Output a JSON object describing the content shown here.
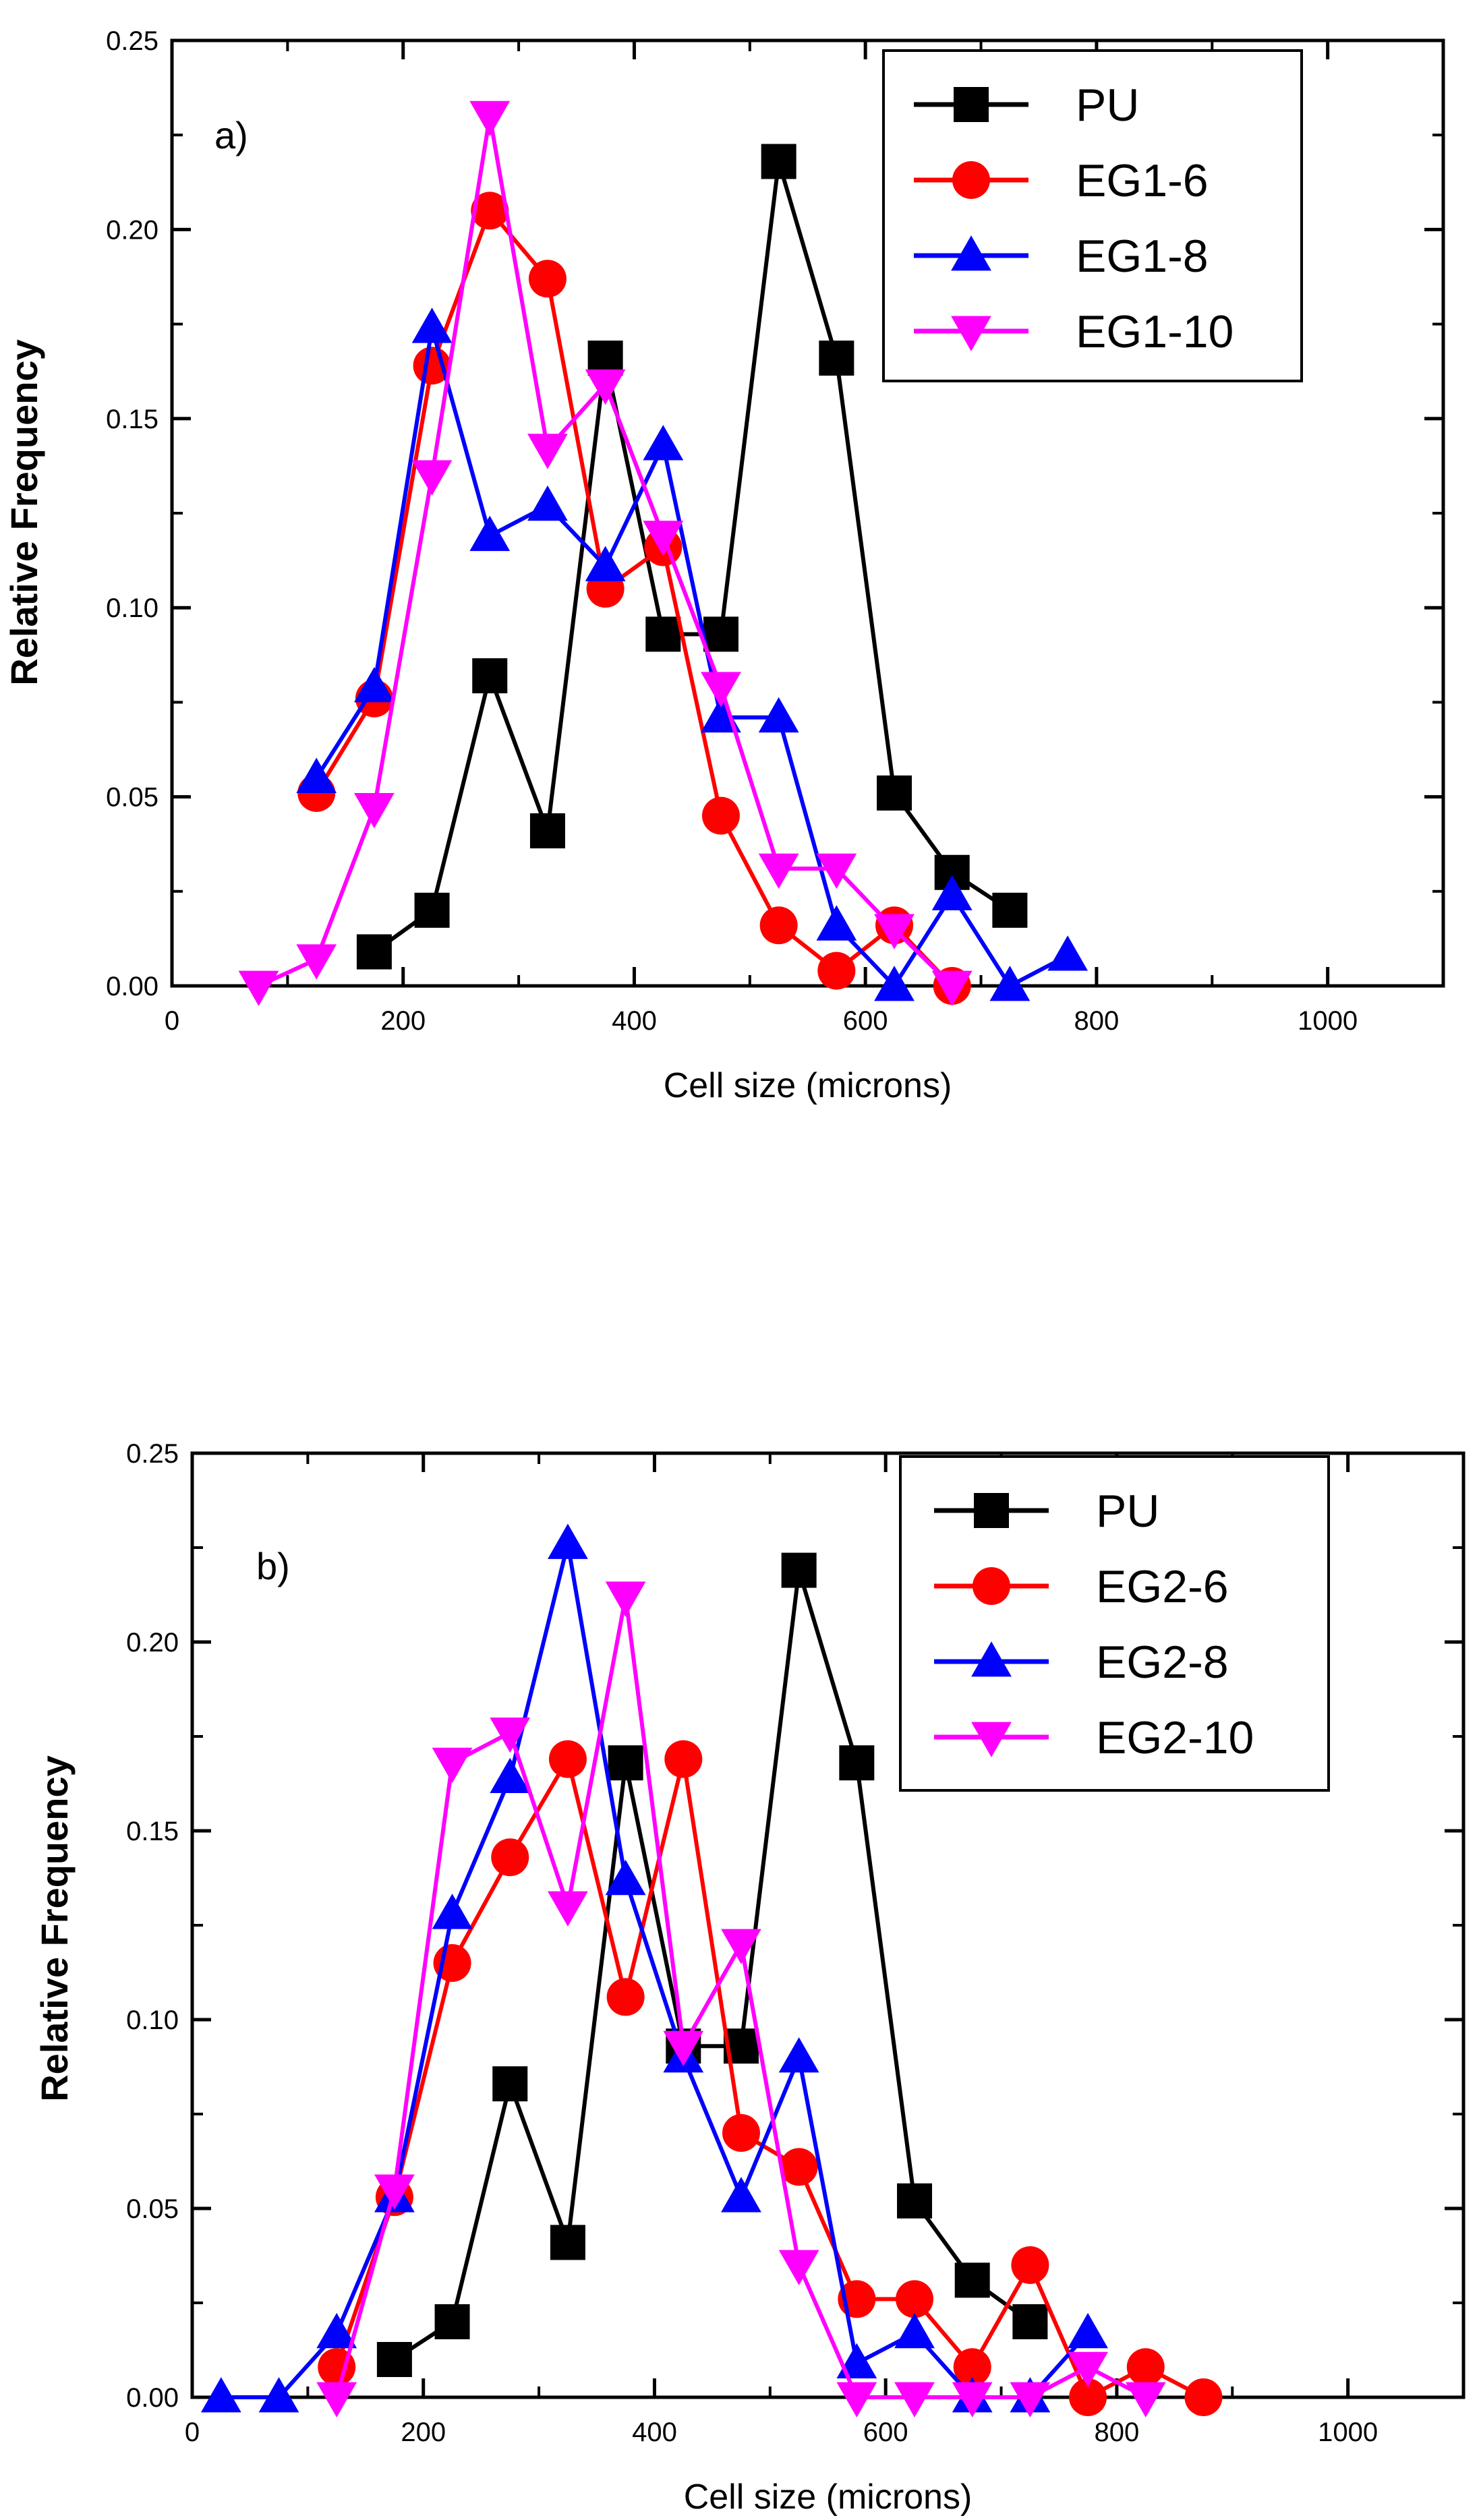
{
  "chart_data": [
    {
      "type": "line",
      "panel_label": "a)",
      "xlabel": "Cell size (microns)",
      "ylabel": "Relative Frequency",
      "xlim": [
        0,
        1100
      ],
      "ylim": [
        0,
        0.25
      ],
      "x_ticks": [
        0,
        200,
        400,
        600,
        800,
        1000
      ],
      "x_tick_labels": [
        "0",
        "200",
        "400",
        "600",
        "800",
        "1000"
      ],
      "y_ticks": [
        0,
        0.05,
        0.1,
        0.15,
        0.2,
        0.25
      ],
      "y_tick_labels": [
        "0.00",
        "0.05",
        "0.10",
        "0.15",
        "0.20",
        "0.25"
      ],
      "legend_position": "top-right",
      "series": [
        {
          "name": "PU",
          "color": "#000000",
          "marker": "square",
          "x": [
            175,
            225,
            275,
            325,
            375,
            425,
            475,
            525,
            575,
            625,
            675,
            725
          ],
          "y": [
            0.009,
            0.02,
            0.082,
            0.041,
            0.166,
            0.093,
            0.093,
            0.218,
            0.166,
            0.051,
            0.03,
            0.02
          ]
        },
        {
          "name": "EG1-6",
          "color": "#ff0000",
          "marker": "circle",
          "x": [
            125,
            175,
            225,
            275,
            325,
            375,
            425,
            475,
            525,
            575,
            625,
            675
          ],
          "y": [
            0.051,
            0.076,
            0.164,
            0.205,
            0.187,
            0.105,
            0.116,
            0.045,
            0.016,
            0.004,
            0.016,
            0.0
          ]
        },
        {
          "name": "EG1-8",
          "color": "#0000ff",
          "marker": "triangle-up",
          "x": [
            125,
            175,
            225,
            275,
            325,
            375,
            425,
            475,
            525,
            575,
            625,
            675,
            725,
            775
          ],
          "y": [
            0.055,
            0.079,
            0.174,
            0.119,
            0.127,
            0.111,
            0.143,
            0.071,
            0.071,
            0.016,
            0.0,
            0.024,
            0.0,
            0.008
          ]
        },
        {
          "name": "EG1-10",
          "color": "#ff00ff",
          "marker": "triangle-down",
          "x": [
            75,
            125,
            175,
            225,
            275,
            325,
            375,
            425,
            475,
            525,
            575,
            625,
            675
          ],
          "y": [
            0.0,
            0.007,
            0.047,
            0.135,
            0.23,
            0.142,
            0.159,
            0.119,
            0.079,
            0.031,
            0.031,
            0.015,
            0.0
          ]
        }
      ]
    },
    {
      "type": "line",
      "panel_label": "b)",
      "xlabel": "Cell size (microns)",
      "ylabel": "Relative Frequency",
      "xlim": [
        0,
        1100
      ],
      "ylim": [
        0,
        0.25
      ],
      "x_ticks": [
        0,
        200,
        400,
        600,
        800,
        1000
      ],
      "x_tick_labels": [
        "0",
        "200",
        "400",
        "600",
        "800",
        "1000"
      ],
      "y_ticks": [
        0,
        0.05,
        0.1,
        0.15,
        0.2,
        0.25
      ],
      "y_tick_labels": [
        "0.00",
        "0.05",
        "0.10",
        "0.15",
        "0.20",
        "0.25"
      ],
      "legend_position": "top-right",
      "series": [
        {
          "name": "PU",
          "color": "#000000",
          "marker": "square",
          "x": [
            175,
            225,
            275,
            325,
            375,
            425,
            475,
            525,
            575,
            625,
            675,
            725
          ],
          "y": [
            0.01,
            0.02,
            0.083,
            0.041,
            0.168,
            0.093,
            0.093,
            0.219,
            0.168,
            0.052,
            0.031,
            0.02
          ]
        },
        {
          "name": "EG2-6",
          "color": "#ff0000",
          "marker": "circle",
          "x": [
            125,
            175,
            225,
            275,
            325,
            375,
            425,
            475,
            525,
            575,
            625,
            675,
            725,
            775,
            825,
            875
          ],
          "y": [
            0.008,
            0.053,
            0.115,
            0.143,
            0.169,
            0.106,
            0.169,
            0.07,
            0.061,
            0.026,
            0.026,
            0.008,
            0.035,
            0.0,
            0.008,
            0.0
          ]
        },
        {
          "name": "EG2-8",
          "color": "#0000ff",
          "marker": "triangle-up",
          "x": [
            25,
            75,
            125,
            175,
            225,
            275,
            325,
            375,
            425,
            475,
            525,
            575,
            625,
            675,
            725,
            775
          ],
          "y": [
            0.0,
            0.0,
            0.017,
            0.053,
            0.128,
            0.164,
            0.226,
            0.137,
            0.09,
            0.053,
            0.09,
            0.009,
            0.017,
            0.0,
            0.0,
            0.017
          ]
        },
        {
          "name": "EG2-10",
          "color": "#ff00ff",
          "marker": "triangle-down",
          "x": [
            125,
            175,
            225,
            275,
            325,
            375,
            425,
            475,
            525,
            575,
            625,
            675,
            725,
            775,
            825
          ],
          "y": [
            0.0,
            0.055,
            0.168,
            0.176,
            0.13,
            0.212,
            0.093,
            0.12,
            0.035,
            0.0,
            0.0,
            0.0,
            0.0,
            0.008,
            0.0
          ]
        }
      ]
    }
  ]
}
